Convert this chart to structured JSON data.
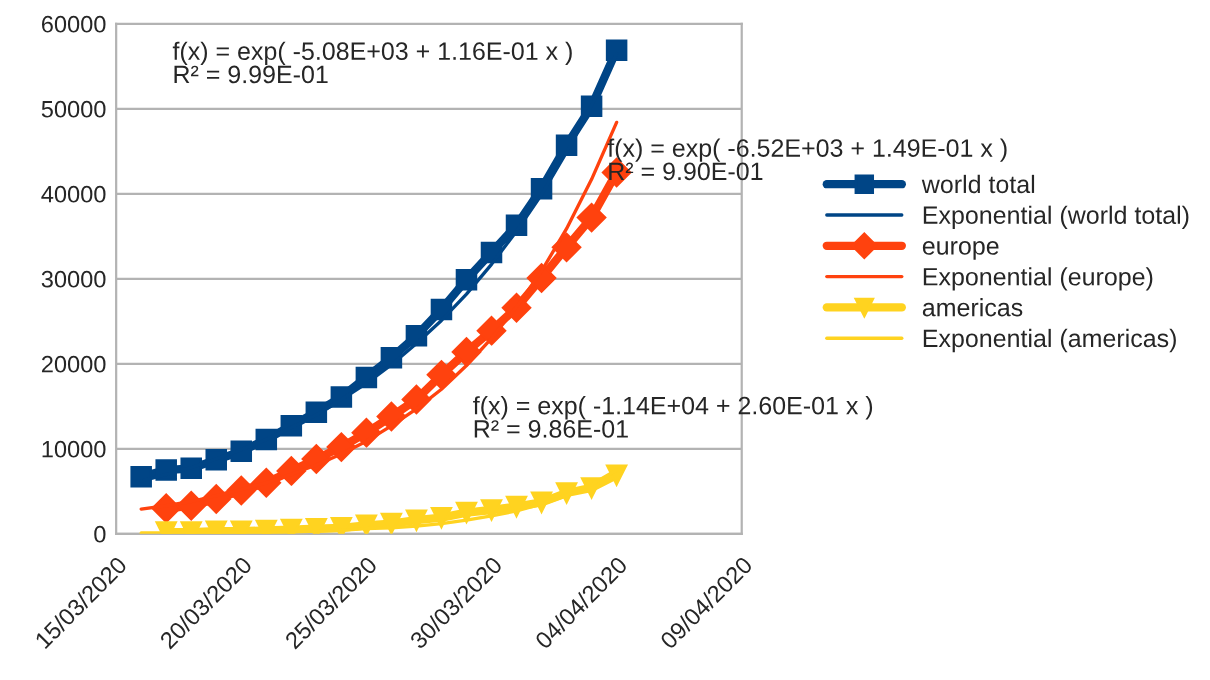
{
  "chart_data": {
    "type": "line",
    "x": [
      "2020-03-16",
      "2020-03-17",
      "2020-03-18",
      "2020-03-19",
      "2020-03-20",
      "2020-03-21",
      "2020-03-22",
      "2020-03-23",
      "2020-03-24",
      "2020-03-25",
      "2020-03-26",
      "2020-03-27",
      "2020-03-28",
      "2020-03-29",
      "2020-03-30",
      "2020-03-31",
      "2020-04-01",
      "2020-04-02",
      "2020-04-03",
      "2020-04-04"
    ],
    "series": [
      {
        "name": "world total",
        "color": "#004586",
        "marker": "square",
        "line_style": "solid",
        "values": [
          6700,
          7500,
          7700,
          8700,
          9700,
          11100,
          12700,
          14300,
          16100,
          18400,
          20700,
          23300,
          26400,
          29900,
          33100,
          36300,
          40600,
          45700,
          50300,
          56900
        ]
      },
      {
        "name": "Exponential (world total)",
        "color": "#004586",
        "marker": "none",
        "line_style": "solid",
        "values": [
          6200,
          7000,
          7800,
          8800,
          9900,
          11100,
          12500,
          14000,
          15800,
          17700,
          19900,
          22400,
          25100,
          28200,
          31700,
          35600,
          39900,
          44900,
          50400,
          56500
        ]
      },
      {
        "name": "europe",
        "color": "#ff420e",
        "marker": "diamond",
        "line_style": "solid",
        "values": [
          null,
          3000,
          3300,
          4100,
          5100,
          6000,
          7400,
          8800,
          10200,
          11900,
          13800,
          15800,
          18700,
          21400,
          23900,
          26600,
          30100,
          33700,
          37200,
          42500
        ]
      },
      {
        "name": "Exponential (europe)",
        "color": "#ff420e",
        "marker": "none",
        "line_style": "solid",
        "values": [
          2900,
          3300,
          3800,
          4500,
          5200,
          6000,
          7000,
          8100,
          9400,
          10900,
          12700,
          14700,
          17000,
          19800,
          23000,
          26700,
          30900,
          35900,
          41700,
          48400
        ]
      },
      {
        "name": "americas",
        "color": "#ffd320",
        "marker": "triangle",
        "line_style": "solid",
        "values": [
          null,
          200,
          200,
          300,
          300,
          400,
          500,
          600,
          700,
          1000,
          1200,
          1600,
          1900,
          2500,
          2800,
          3200,
          3700,
          4800,
          5400,
          6900
        ]
      },
      {
        "name": "Exponential (americas)",
        "color": "#ffd320",
        "marker": "none",
        "line_style": "solid",
        "values": [
          100,
          100,
          100,
          100,
          200,
          200,
          300,
          300,
          400,
          600,
          700,
          900,
          1200,
          1600,
          2100,
          2700,
          3500,
          4500,
          5800,
          7500
        ]
      }
    ],
    "annotations": [
      "f(x) = exp( -5.08E+03 + 1.16E-01 x )\nR² = 9.99E-01",
      "f(x) = exp( -6.52E+03 + 1.49E-01 x )\nR² = 9.90E-01",
      "f(x) = exp( -1.14E+04 + 2.60E-01 x )\nR² = 9.86E-01"
    ],
    "xlim": [
      "2020-03-15",
      "2020-04-09"
    ],
    "xticks": [
      {
        "value": "2020-03-15",
        "label": "15/03/2020"
      },
      {
        "value": "2020-03-20",
        "label": "20/03/2020"
      },
      {
        "value": "2020-03-25",
        "label": "25/03/2020"
      },
      {
        "value": "2020-03-30",
        "label": "30/03/2020"
      },
      {
        "value": "2020-04-04",
        "label": "04/04/2020"
      },
      {
        "value": "2020-04-09",
        "label": "09/04/2020"
      }
    ],
    "ylim": [
      0,
      60000
    ],
    "yticks": [
      0,
      10000,
      20000,
      30000,
      40000,
      50000,
      60000
    ],
    "grid": "y",
    "legend": "right"
  }
}
